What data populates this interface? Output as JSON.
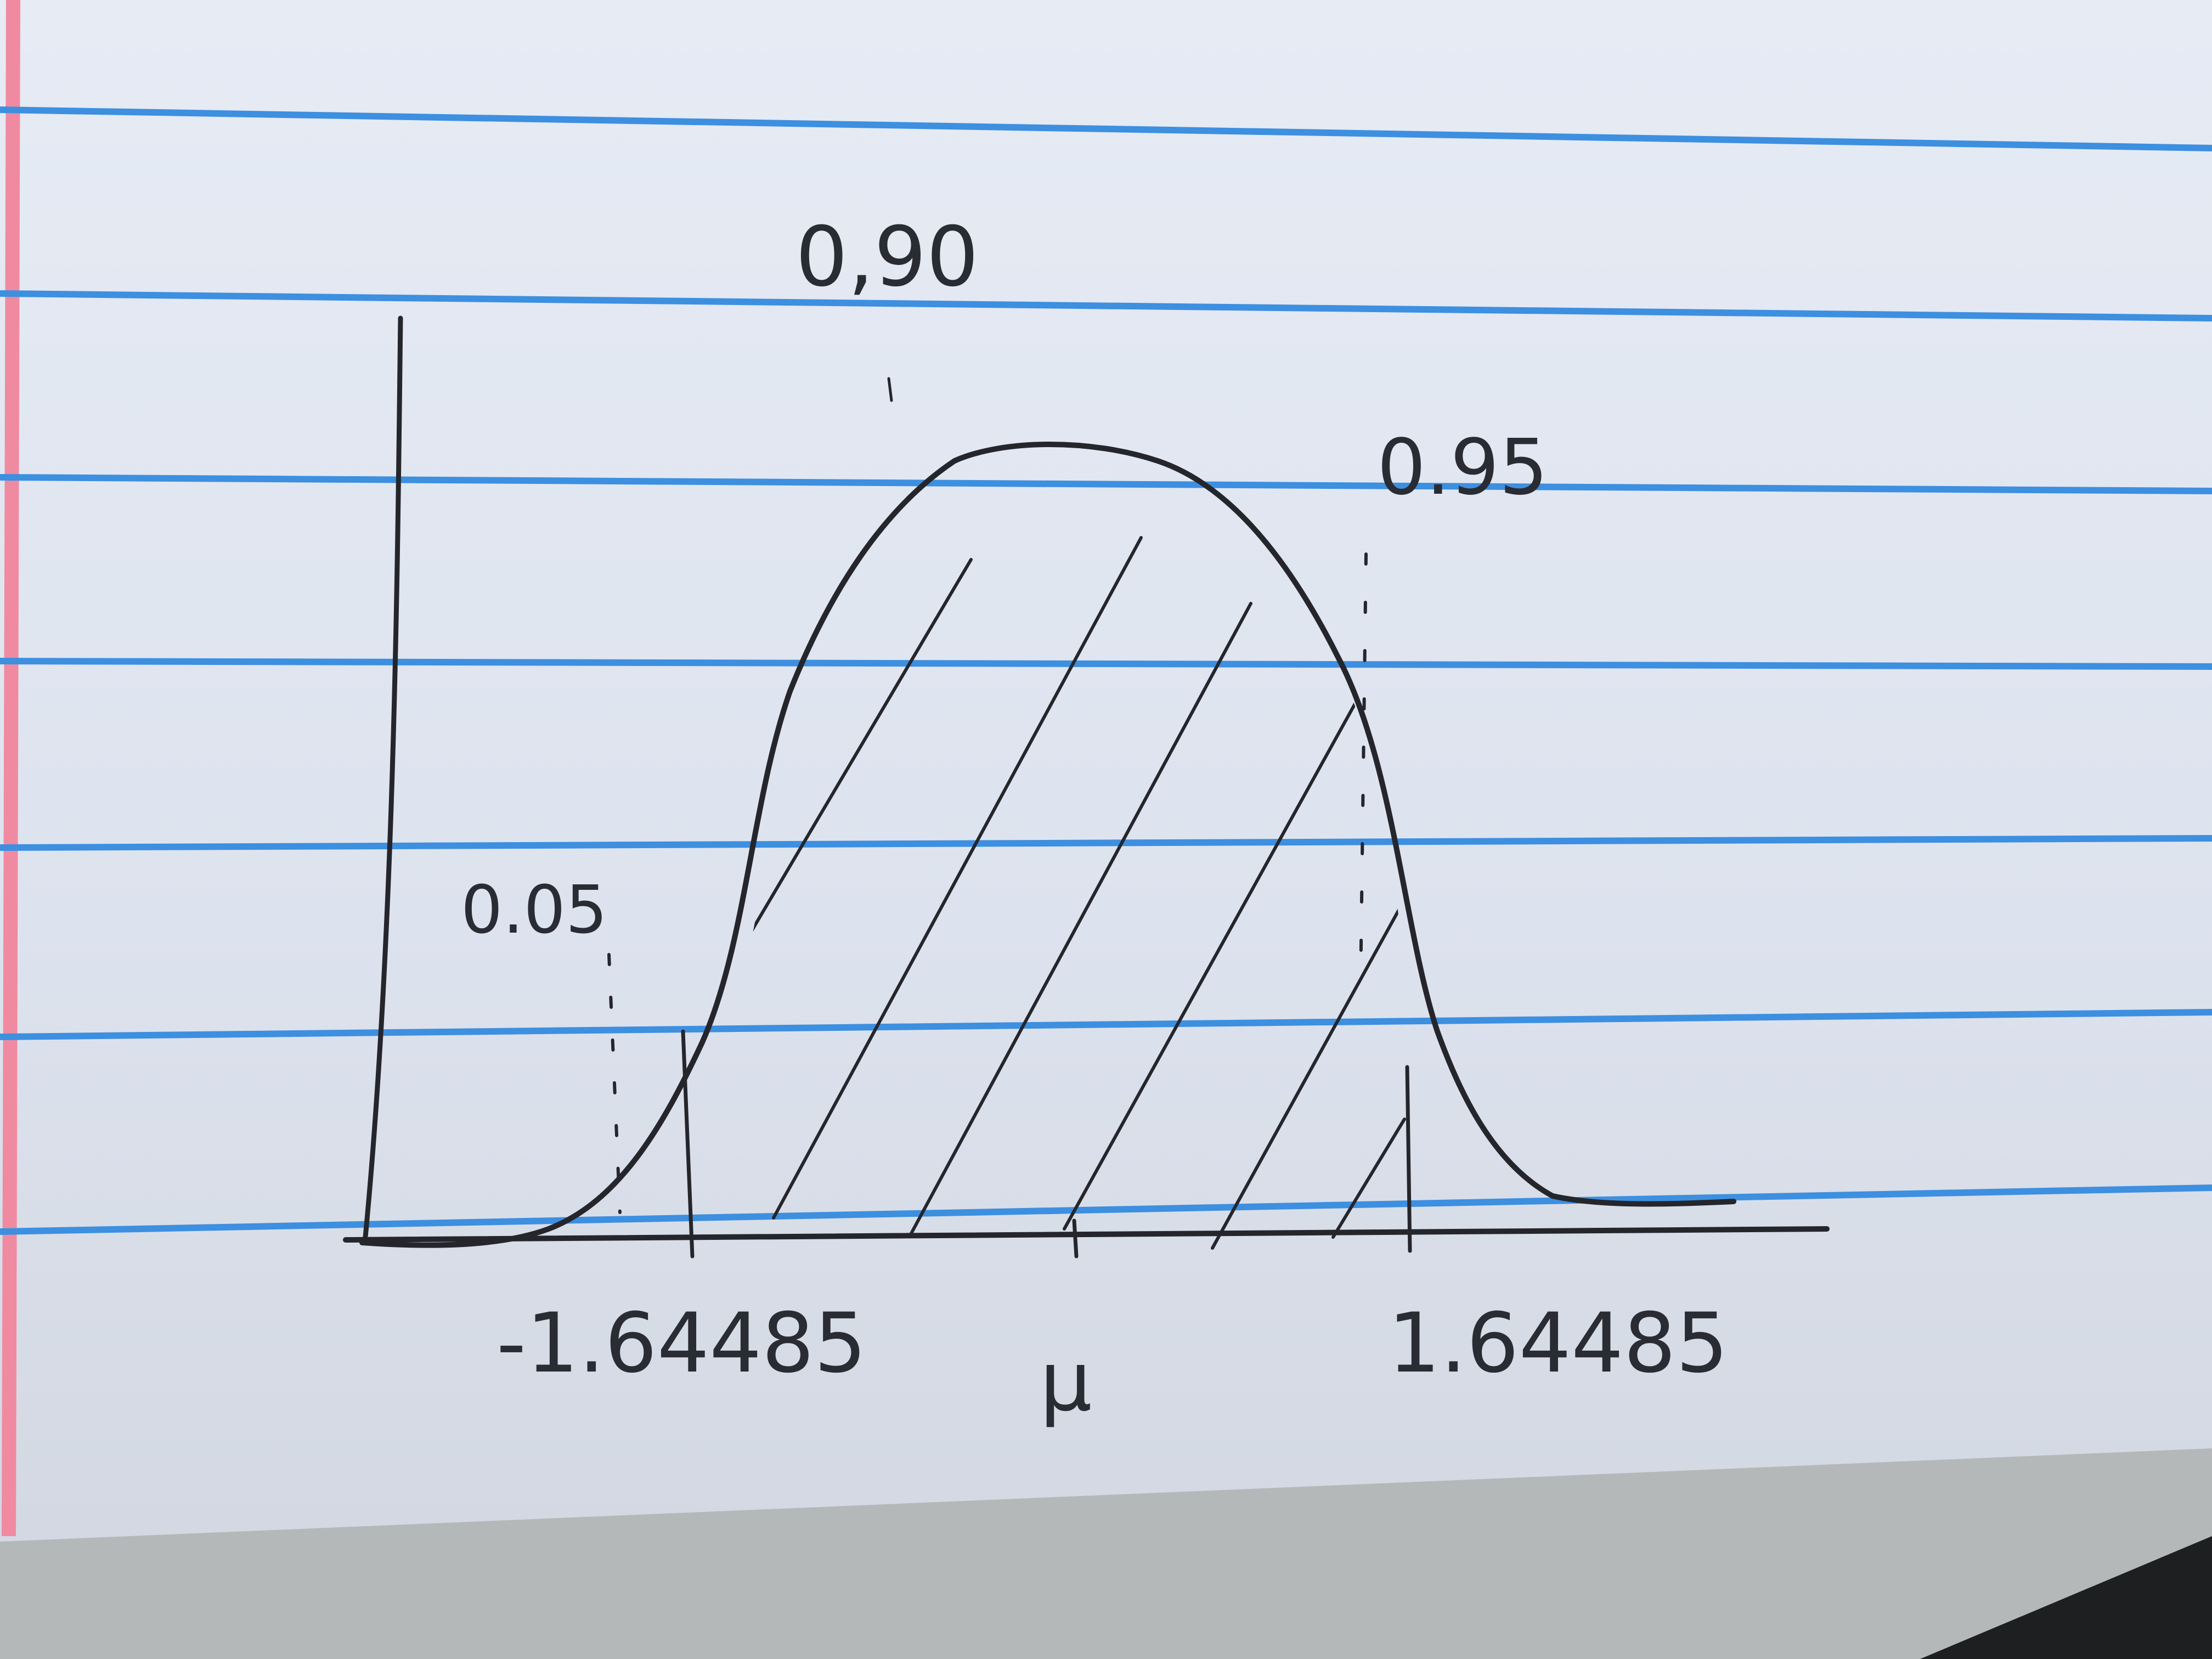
{
  "photo": {
    "paper_color": "#e4e9f2",
    "rule_color": "#3d8fe0",
    "margin_color": "#f08aa0",
    "ink_color": "#25262c",
    "table_color": "#b4b8b8"
  },
  "sketch": {
    "type": "normal distribution curve with shaded region",
    "labels": {
      "center_area": "0,90",
      "right_cumulative": "0.95",
      "left_tail": "0.05",
      "left_critical": "-1.64485",
      "right_critical": "1.64485",
      "mean": "μ"
    }
  }
}
